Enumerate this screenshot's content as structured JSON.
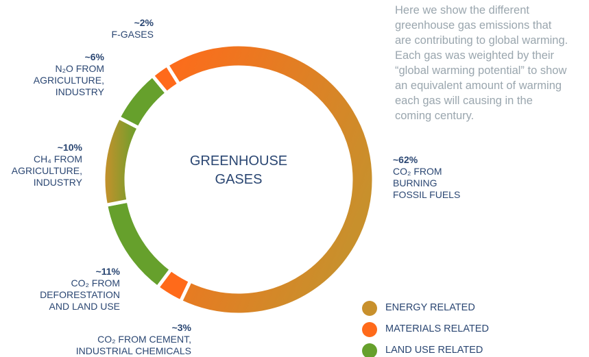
{
  "chart_data": {
    "type": "donut",
    "center_label": "GREENHOUSE\nGASES",
    "description": "Here we show the different\ngreenhouse gas emissions that\nare contributing to global warming.\nEach gas was weighted by their\n“global warming potential” to show\nan equivalent amount of warming\neach gas will causing in the\ncoming century.",
    "categories": [
      "CO₂ FROM\nBURNING\nFOSSIL FUELS",
      "CO₂ FROM CEMENT,\nINDUSTRIAL CHEMICALS",
      "CO₂ FROM\nDEFORESTATION\nAND LAND USE",
      "CH₄ FROM\nAGRICULTURE,\nINDUSTRY",
      "N₂O FROM\nAGRICULTURE,\nINDUSTRY",
      "F-GASES"
    ],
    "values": [
      62,
      3,
      11,
      10,
      6,
      2
    ],
    "value_labels": [
      "~62%",
      "~3%",
      "~11%",
      "~10%",
      "~6%",
      "~2%"
    ],
    "colors": [
      [
        "#ff6a1a",
        "#c8902c"
      ],
      "#ff6a1a",
      "#66a02c",
      [
        "#c8902c",
        "#66a02c"
      ],
      "#66a02c",
      "#ff6a1a"
    ],
    "legend": [
      {
        "name": "ENERGY RELATED",
        "color": "#c8902c"
      },
      {
        "name": "MATERIALS RELATED",
        "color": "#ff6a1a"
      },
      {
        "name": "LAND USE RELATED",
        "color": "#66a02c"
      }
    ]
  }
}
